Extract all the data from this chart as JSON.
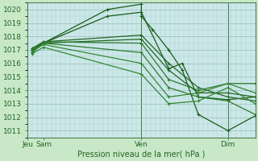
{
  "title": "Pression niveau de la mer( hPa )",
  "bg_color": "#c8e8c8",
  "plot_bg_color": "#cce8e8",
  "grid_color_major": "#99bbbb",
  "grid_color_minor": "#aacccc",
  "line_colors": [
    "#1a5c1a",
    "#1a5c1a",
    "#226622",
    "#226622",
    "#2d7a2d",
    "#2d7a2d",
    "#338833",
    "#338833"
  ],
  "ylim": [
    1010.5,
    1020.5
  ],
  "yticks": [
    1011,
    1012,
    1013,
    1014,
    1015,
    1016,
    1017,
    1018,
    1019,
    1020
  ],
  "xlim": [
    0,
    1
  ],
  "xtick_positions": [
    0.0,
    0.07,
    0.5,
    0.88
  ],
  "xtick_labels": [
    "Jeu",
    "Sam",
    "Ven",
    "Dim"
  ],
  "vlines": [
    0.0,
    0.5,
    0.88
  ],
  "lines": [
    {
      "x": [
        0.02,
        0.07,
        0.35,
        0.5,
        0.5,
        0.55,
        0.62,
        0.68,
        0.75,
        0.88,
        1.0
      ],
      "y": [
        1016.8,
        1017.5,
        1020.0,
        1020.4,
        1019.5,
        1018.5,
        1017.0,
        1015.5,
        1012.2,
        1011.0,
        1012.1
      ]
    },
    {
      "x": [
        0.02,
        0.07,
        0.35,
        0.5,
        0.62,
        0.68,
        0.75,
        0.88,
        1.0
      ],
      "y": [
        1017.0,
        1017.5,
        1019.5,
        1019.8,
        1015.6,
        1016.0,
        1013.5,
        1013.3,
        1013.5
      ]
    },
    {
      "x": [
        0.02,
        0.07,
        0.5,
        0.62,
        0.75,
        0.88,
        1.0
      ],
      "y": [
        1017.1,
        1017.6,
        1018.1,
        1016.0,
        1014.2,
        1013.5,
        1013.2
      ]
    },
    {
      "x": [
        0.02,
        0.07,
        0.5,
        0.62,
        0.75,
        0.88,
        1.0
      ],
      "y": [
        1017.0,
        1017.5,
        1017.8,
        1015.5,
        1013.8,
        1013.8,
        1013.5
      ]
    },
    {
      "x": [
        0.02,
        0.07,
        0.5,
        0.62,
        0.75,
        0.88,
        1.0
      ],
      "y": [
        1017.1,
        1017.6,
        1017.5,
        1014.8,
        1014.0,
        1014.5,
        1014.5
      ]
    },
    {
      "x": [
        0.02,
        0.07,
        0.5,
        0.62,
        0.75,
        0.88,
        1.0
      ],
      "y": [
        1017.0,
        1017.5,
        1016.8,
        1014.2,
        1013.5,
        1013.2,
        1012.2
      ]
    },
    {
      "x": [
        0.02,
        0.07,
        0.5,
        0.62,
        0.75,
        0.88,
        1.0
      ],
      "y": [
        1016.9,
        1017.4,
        1016.0,
        1013.5,
        1013.8,
        1014.5,
        1013.8
      ]
    },
    {
      "x": [
        0.02,
        0.07,
        0.5,
        0.62,
        0.75,
        0.88,
        1.0
      ],
      "y": [
        1016.7,
        1017.2,
        1015.2,
        1013.0,
        1013.2,
        1014.2,
        1013.0
      ]
    }
  ],
  "marker": "+",
  "marker_size": 3,
  "line_width": 0.9
}
